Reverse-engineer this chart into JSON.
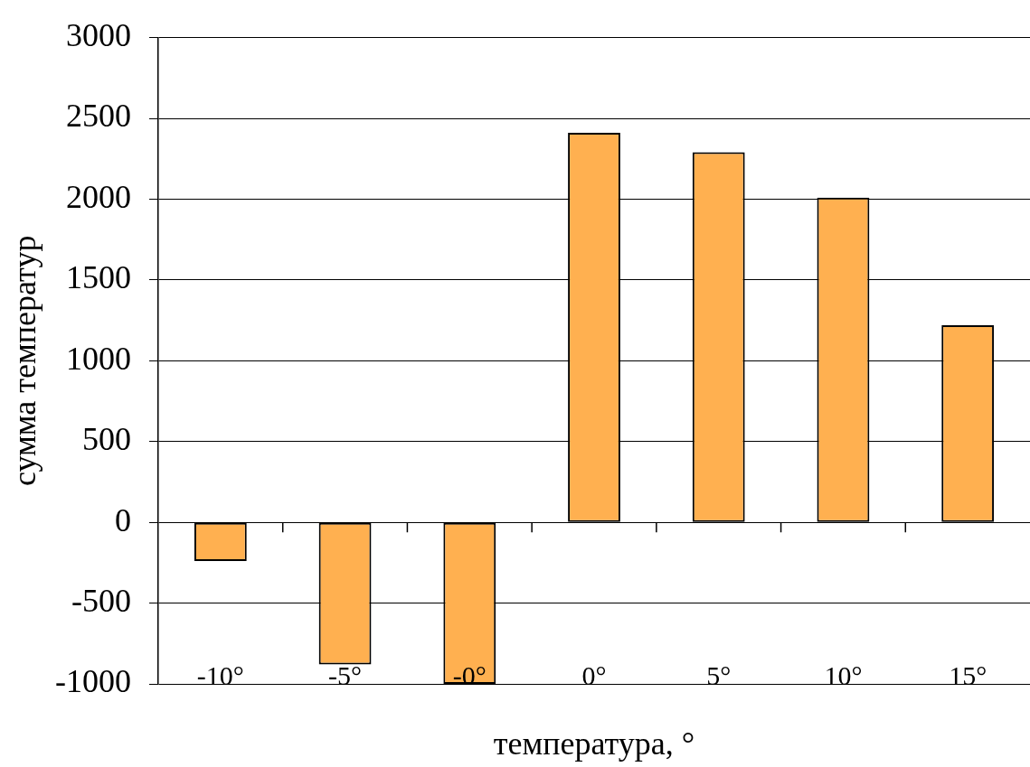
{
  "chart_data": {
    "type": "bar",
    "xlabel": "температура, °",
    "ylabel": "сумма температур",
    "categories": [
      "-10°",
      "-5°",
      "-0°",
      "0°",
      "5°",
      "10°",
      "15°"
    ],
    "values": [
      -240,
      -880,
      -1000,
      2410,
      2290,
      2010,
      1220
    ],
    "color": "#ffb050",
    "ylim": [
      -1000,
      3000
    ],
    "yticks": [
      -1000,
      -500,
      0,
      500,
      1000,
      1500,
      2000,
      2500,
      3000
    ],
    "grid": "y"
  }
}
